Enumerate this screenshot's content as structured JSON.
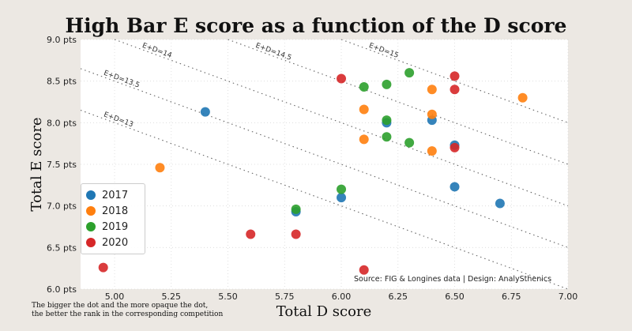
{
  "chart_data": {
    "type": "scatter",
    "title": "High Bar E score as a function of the D score",
    "xlabel": "Total D score",
    "ylabel": "Total E score",
    "xlim": [
      4.85,
      7.0
    ],
    "ylim": [
      6.0,
      9.0
    ],
    "x_ticks": [
      "5.00",
      "5.25",
      "5.50",
      "5.75",
      "6.00",
      "6.25",
      "6.50",
      "6.75",
      "7.00"
    ],
    "x_tick_values": [
      5.0,
      5.25,
      5.5,
      5.75,
      6.0,
      6.25,
      6.5,
      6.75,
      7.0
    ],
    "y_ticks": [
      "6.0 pts",
      "6.5 pts",
      "7.0 pts",
      "7.5 pts",
      "8.0 pts",
      "8.5 pts",
      "9.0 pts"
    ],
    "y_tick_values": [
      6.0,
      6.5,
      7.0,
      7.5,
      8.0,
      8.5,
      9.0
    ],
    "grid": "dotted",
    "legend_position": "lower-left",
    "reference_lines": [
      {
        "label": "E+D=13",
        "sum": 13
      },
      {
        "label": "E+D=13.5",
        "sum": 13.5
      },
      {
        "label": "E+D=14",
        "sum": 14
      },
      {
        "label": "E+D=14.5",
        "sum": 14.5
      },
      {
        "label": "E+D=15",
        "sum": 15
      }
    ],
    "series": [
      {
        "name": "2017",
        "color": "#1f77b4",
        "points": [
          [
            5.4,
            8.13
          ],
          [
            6.0,
            7.1
          ],
          [
            6.2,
            8.0
          ],
          [
            6.4,
            8.03
          ],
          [
            6.5,
            7.73
          ],
          [
            6.5,
            7.23
          ],
          [
            6.7,
            7.03
          ],
          [
            5.8,
            6.93
          ]
        ]
      },
      {
        "name": "2018",
        "color": "#ff7f0e",
        "points": [
          [
            5.2,
            7.46
          ],
          [
            6.1,
            8.16
          ],
          [
            6.1,
            7.8
          ],
          [
            6.4,
            8.4
          ],
          [
            6.4,
            8.1
          ],
          [
            6.4,
            7.66
          ],
          [
            6.8,
            8.3
          ]
        ]
      },
      {
        "name": "2019",
        "color": "#2ca02c",
        "points": [
          [
            6.1,
            8.43
          ],
          [
            6.2,
            8.46
          ],
          [
            6.2,
            8.03
          ],
          [
            6.2,
            7.83
          ],
          [
            6.3,
            8.6
          ],
          [
            6.3,
            7.76
          ],
          [
            6.0,
            7.2
          ],
          [
            5.8,
            6.96
          ]
        ]
      },
      {
        "name": "2020",
        "color": "#d62728",
        "points": [
          [
            6.0,
            8.53
          ],
          [
            6.5,
            8.56
          ],
          [
            6.5,
            8.4
          ],
          [
            6.5,
            7.7
          ],
          [
            4.95,
            6.26
          ],
          [
            5.6,
            6.66
          ],
          [
            5.8,
            6.66
          ],
          [
            6.1,
            6.23
          ]
        ]
      }
    ]
  },
  "source_text": "Source: FIG & Longines data  |  Design: AnalySthenics",
  "footnote_line1": "The bigger the dot and the more opaque the dot,",
  "footnote_line2": "the better the rank in the corresponding competition"
}
